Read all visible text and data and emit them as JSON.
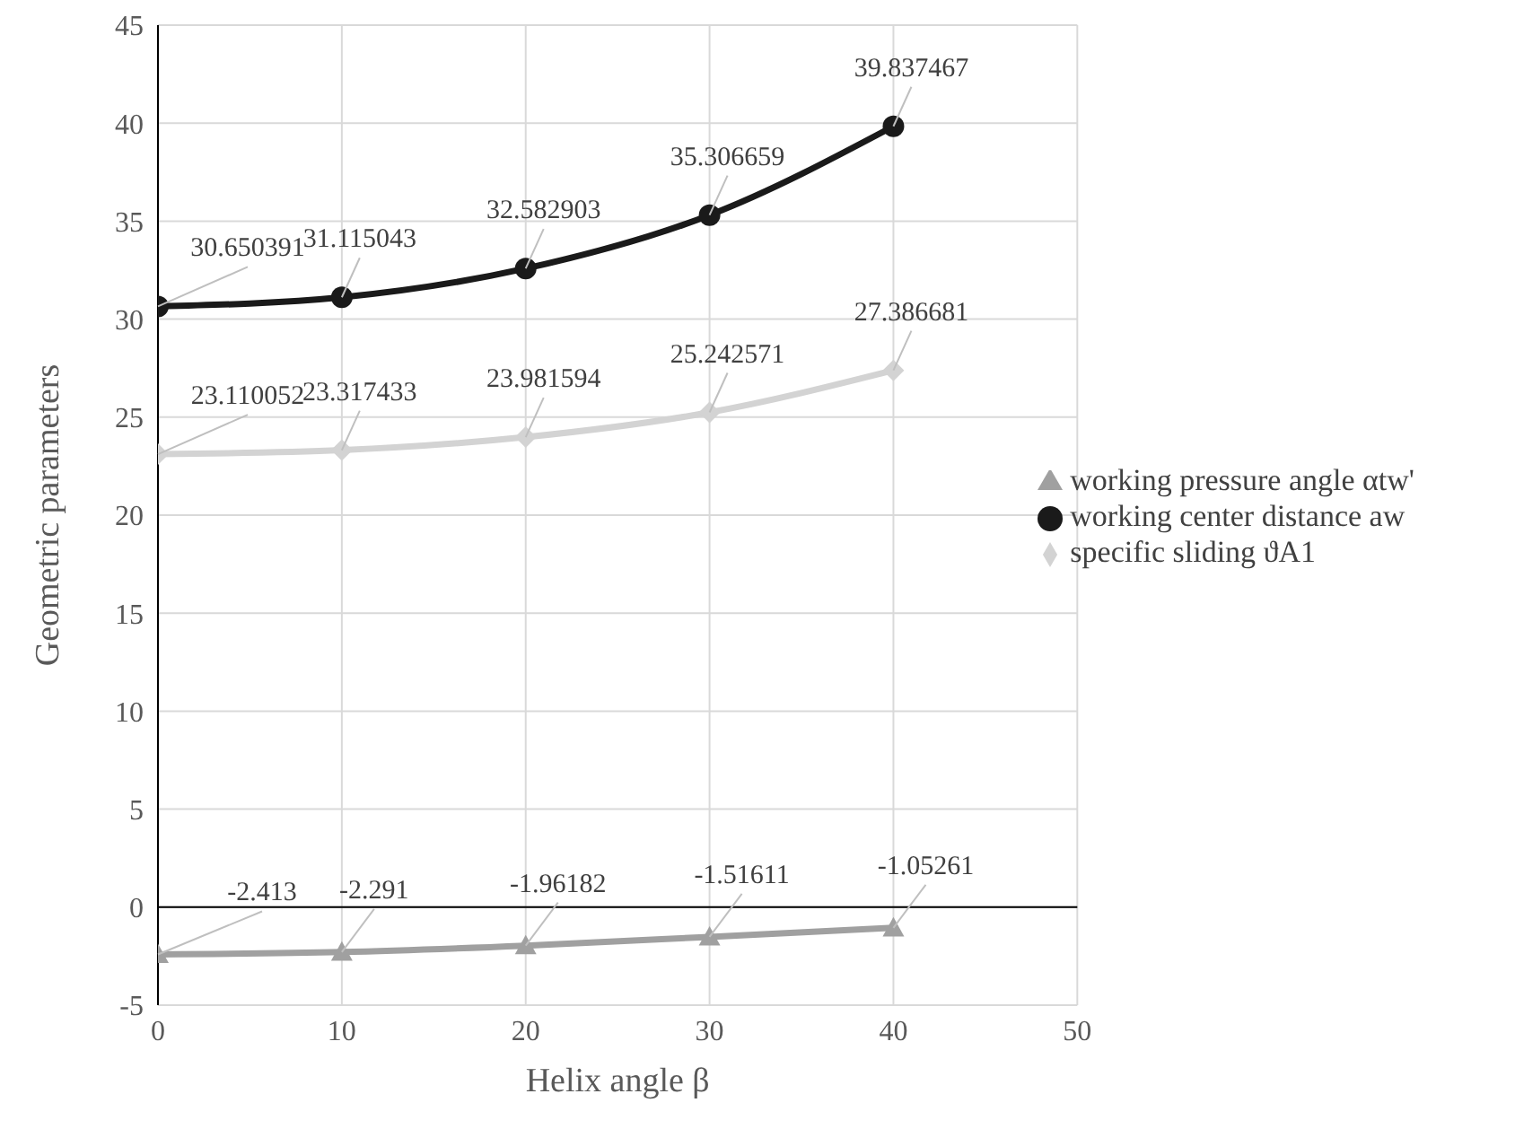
{
  "chart_data": {
    "type": "line",
    "xlabel": "Helix angle β",
    "ylabel": "Geometric parameters",
    "x": [
      0,
      10,
      20,
      30,
      40
    ],
    "series": [
      {
        "name": "working pressure angle αtw'",
        "color": "#a0a0a0",
        "marker": "triangle",
        "values": [
          -2.413,
          -2.291,
          -1.96182,
          -1.51611,
          -1.05261
        ]
      },
      {
        "name": "working center distance aw",
        "color": "#1a1a1a",
        "marker": "circle",
        "values": [
          30.650391,
          31.115043,
          32.582903,
          35.306659,
          39.837467
        ]
      },
      {
        "name": "specific sliding ϑA1",
        "color": "#d3d3d3",
        "marker": "diamond",
        "values": [
          23.110052,
          23.317433,
          23.981594,
          25.242571,
          27.386681
        ]
      }
    ],
    "xlim": [
      0,
      50
    ],
    "xticks": [
      0,
      10,
      20,
      30,
      40,
      50
    ],
    "ylim": [
      -5,
      45
    ],
    "yticks": [
      -5,
      0,
      5,
      10,
      15,
      20,
      25,
      30,
      35,
      40,
      45
    ],
    "grid": true,
    "legend": "right",
    "data_labels": true
  }
}
